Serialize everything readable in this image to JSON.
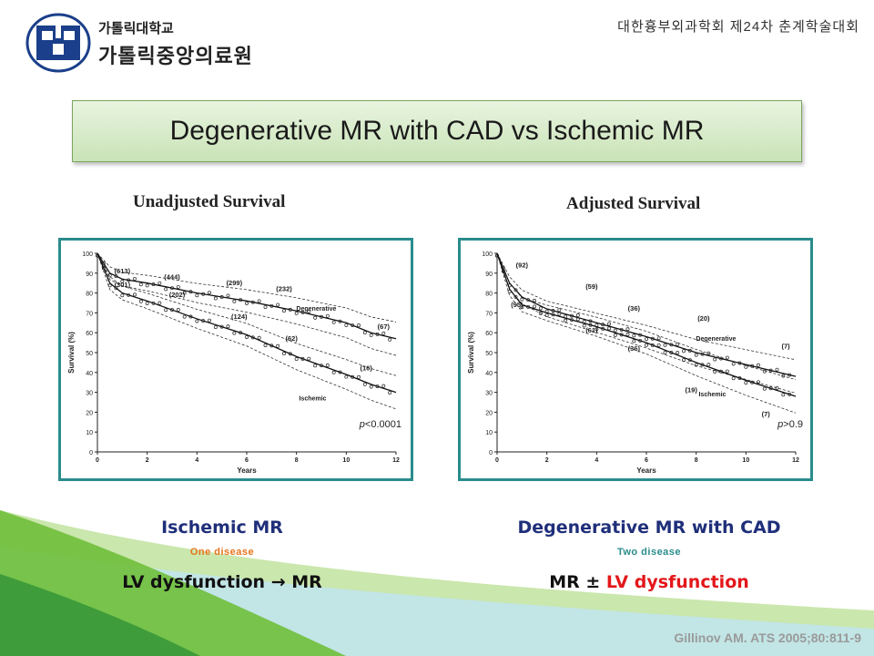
{
  "header": {
    "logo_line1": "가톨릭대학교",
    "logo_line2": "가톨릭중앙의료원",
    "logo_seal_text": "CATHOLIC UNIVERSITY OF KOREA",
    "conference": "대한흉부외과학회 제24차 춘계학술대회"
  },
  "title": "Degenerative MR with CAD vs Ischemic MR",
  "left": {
    "heading": "Unadjusted Survival",
    "p_label": "p",
    "p_value": "<0.0001",
    "caption": "Ischemic MR",
    "tag": "One disease",
    "tag_color": "#e8731a",
    "formula": "LV dysfunction → MR"
  },
  "right": {
    "heading": "Adjusted Survival",
    "p_label": "p",
    "p_value": ">0.9",
    "caption": "Degenerative MR with CAD",
    "tag": "Two disease",
    "tag_color": "#2a8c8c",
    "formula_a": "MR ± ",
    "formula_b": "LV dysfunction"
  },
  "citation": "Gillinov AM. ATS 2005;80:811-9",
  "colors": {
    "frame": "#2a8c8c",
    "title_bg": "#d6ebc8",
    "caption": "#1f2f7a",
    "red": "#e3171b"
  },
  "chart_data": [
    {
      "type": "line",
      "title": "Unadjusted Survival",
      "xlabel": "Years",
      "ylabel": "Survival (%)",
      "xlim": [
        0,
        12
      ],
      "ylim": [
        0,
        100
      ],
      "xticks": [
        0,
        2,
        4,
        6,
        8,
        10,
        12
      ],
      "yticks": [
        0,
        10,
        20,
        30,
        40,
        50,
        60,
        70,
        80,
        90,
        100
      ],
      "series": [
        {
          "name": "Degenerative",
          "x": [
            0,
            0.5,
            1,
            2,
            4,
            6,
            8,
            10,
            11,
            12
          ],
          "y": [
            100,
            90,
            87,
            85,
            80,
            76,
            71,
            65,
            60,
            57
          ]
        },
        {
          "name": "Ischemic",
          "x": [
            0,
            0.5,
            1,
            2,
            4,
            6,
            8,
            10,
            11,
            12
          ],
          "y": [
            100,
            85,
            80,
            76,
            67,
            59,
            48,
            39,
            34,
            30
          ]
        }
      ],
      "at_risk": [
        {
          "x": 1,
          "y": 90,
          "label": "(613)"
        },
        {
          "x": 3,
          "y": 87,
          "label": "(444)"
        },
        {
          "x": 5.5,
          "y": 84,
          "label": "(299)"
        },
        {
          "x": 7.5,
          "y": 81,
          "label": "(232)"
        },
        {
          "x": 11.5,
          "y": 62,
          "label": "(67)"
        },
        {
          "x": 1,
          "y": 83,
          "label": "(301)"
        },
        {
          "x": 3.2,
          "y": 78,
          "label": "(202)"
        },
        {
          "x": 5.7,
          "y": 67,
          "label": "(124)"
        },
        {
          "x": 7.8,
          "y": 56,
          "label": "(62)"
        },
        {
          "x": 10.8,
          "y": 41,
          "label": "(16)"
        }
      ],
      "annotation": "p<0.0001"
    },
    {
      "type": "line",
      "title": "Adjusted Survival",
      "xlabel": "Years",
      "ylabel": "Survival (%)",
      "xlim": [
        0,
        12
      ],
      "ylim": [
        0,
        100
      ],
      "xticks": [
        0,
        2,
        4,
        6,
        8,
        10,
        12
      ],
      "yticks": [
        0,
        10,
        20,
        30,
        40,
        50,
        60,
        70,
        80,
        90,
        100
      ],
      "series": [
        {
          "name": "Degenerative",
          "x": [
            0,
            0.5,
            1,
            2,
            4,
            6,
            8,
            10,
            12
          ],
          "y": [
            100,
            85,
            78,
            72,
            65,
            58,
            50,
            44,
            38
          ]
        },
        {
          "name": "Ischemic",
          "x": [
            0,
            0.5,
            1,
            2,
            4,
            6,
            8,
            10,
            12
          ],
          "y": [
            100,
            82,
            74,
            70,
            63,
            55,
            45,
            36,
            28
          ]
        }
      ],
      "at_risk": [
        {
          "x": 1,
          "y": 93,
          "label": "(92)"
        },
        {
          "x": 0.8,
          "y": 73,
          "label": "(95)"
        },
        {
          "x": 3.8,
          "y": 82,
          "label": "(59)"
        },
        {
          "x": 3.8,
          "y": 60,
          "label": "(61)"
        },
        {
          "x": 5.5,
          "y": 71,
          "label": "(36)"
        },
        {
          "x": 5.5,
          "y": 51,
          "label": "(36)"
        },
        {
          "x": 8.3,
          "y": 66,
          "label": "(20)"
        },
        {
          "x": 7.8,
          "y": 30,
          "label": "(19)"
        },
        {
          "x": 11.6,
          "y": 52,
          "label": "(7)"
        },
        {
          "x": 10.8,
          "y": 18,
          "label": "(7)"
        }
      ],
      "annotation": "p>0.9"
    }
  ]
}
